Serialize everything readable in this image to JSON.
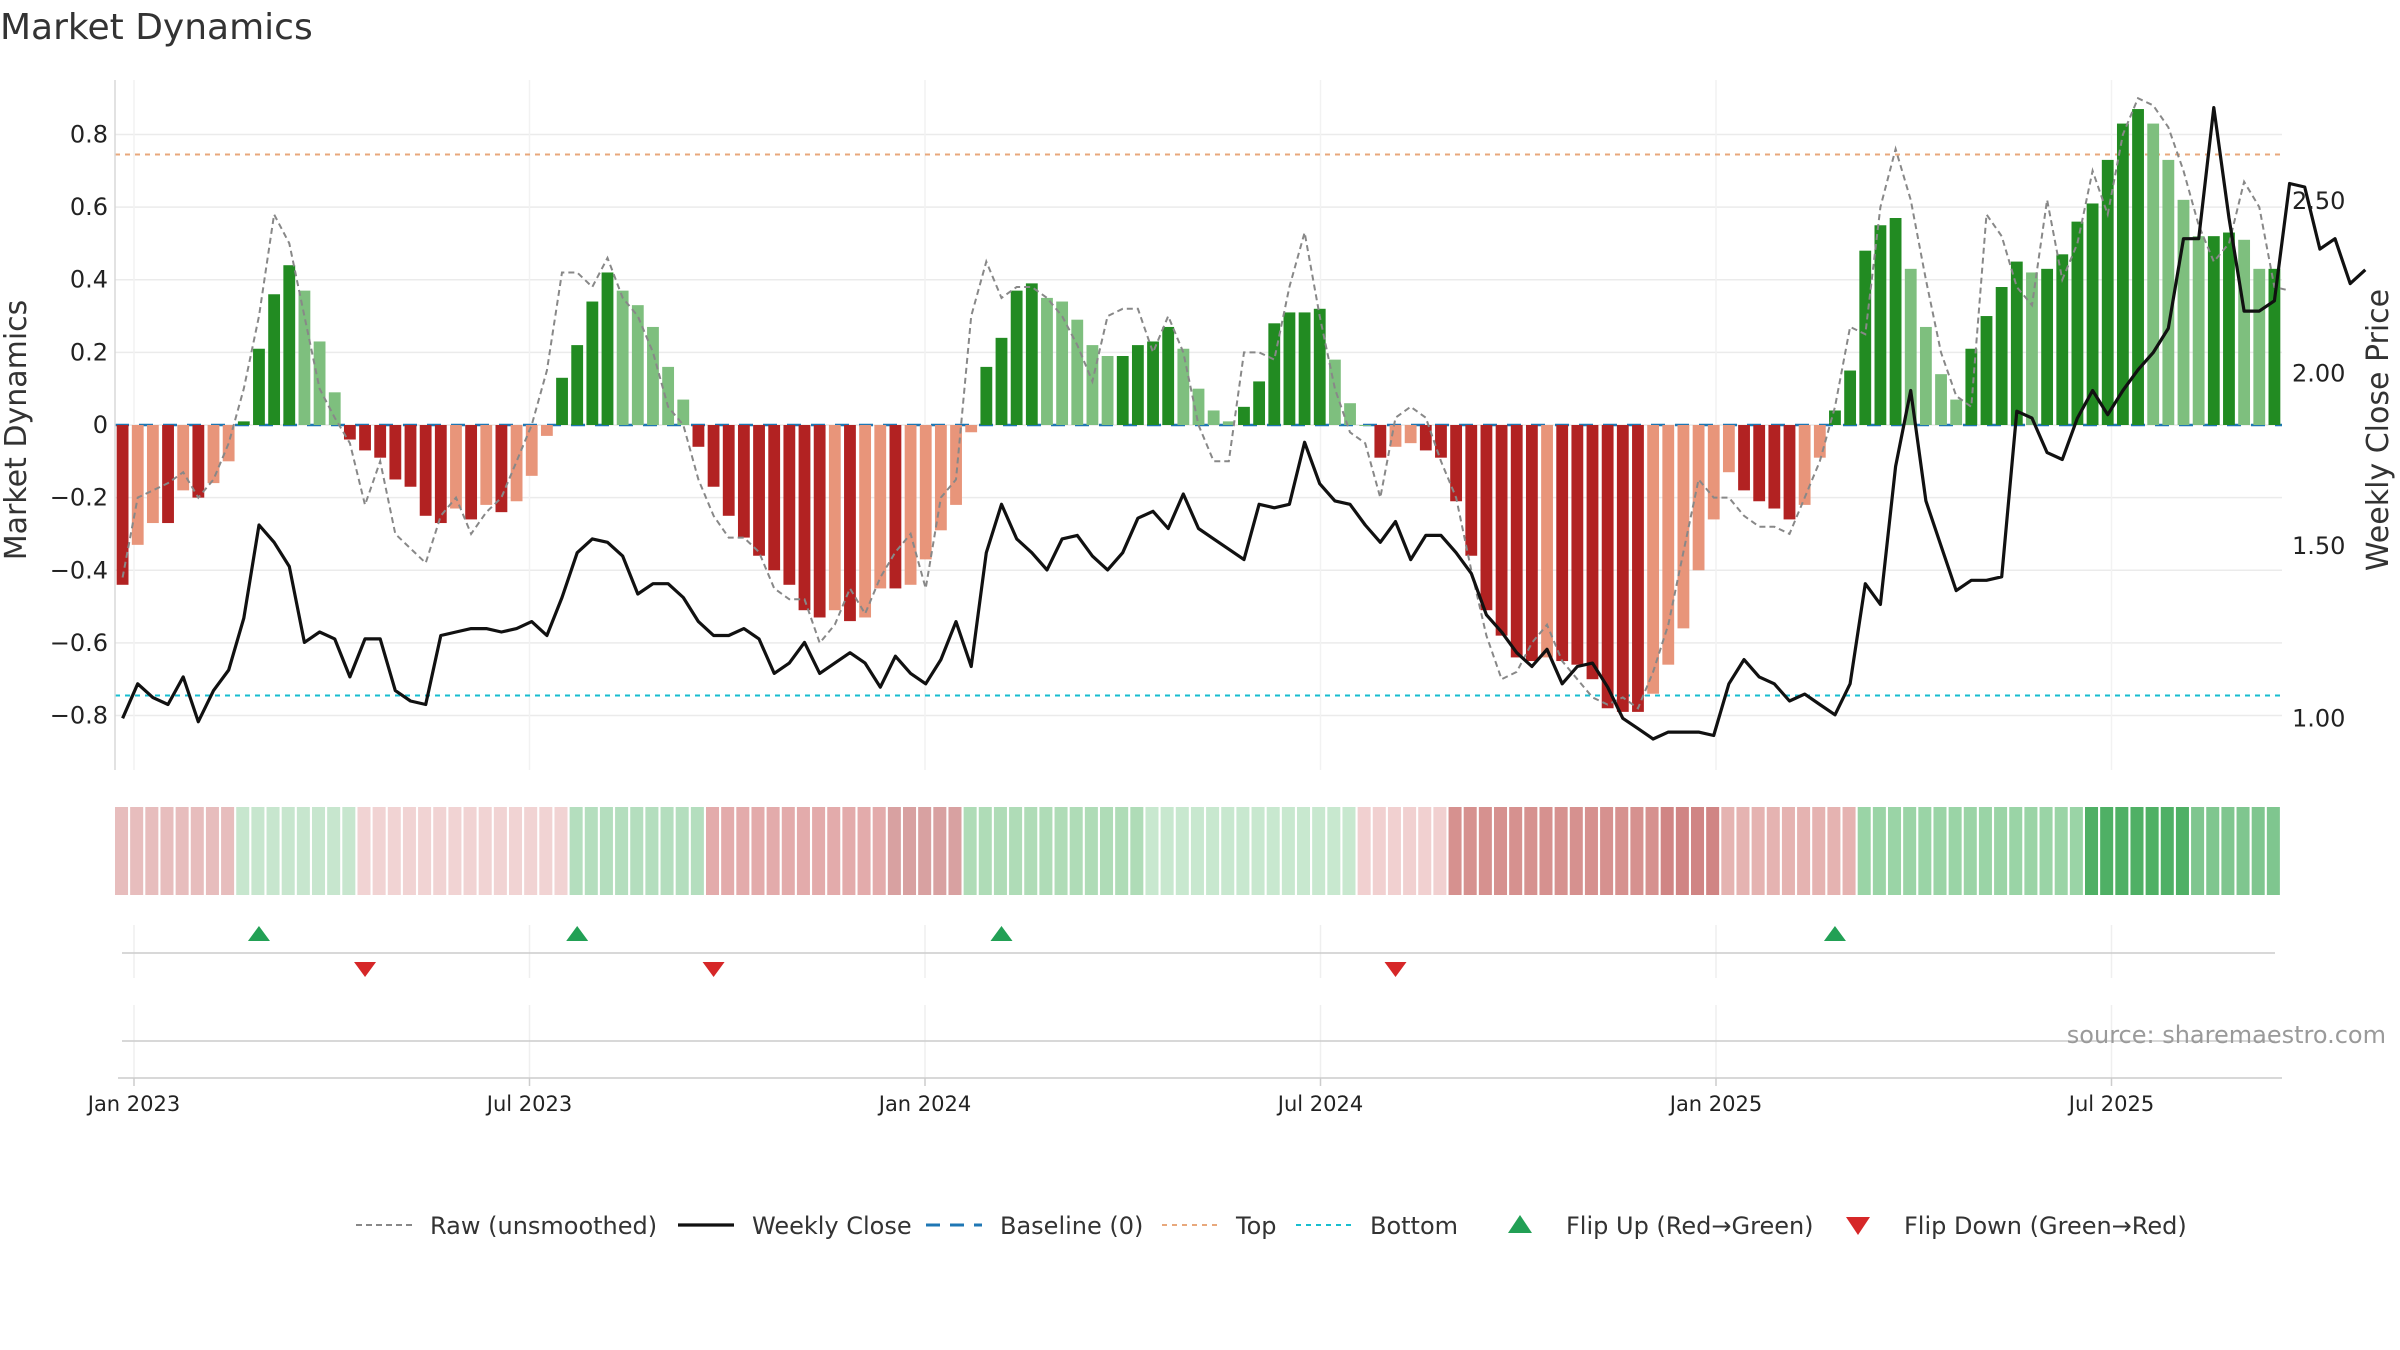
{
  "chart_data": {
    "type": "bar",
    "title": "Market Dynamics",
    "ylabel": "Market Dynamics",
    "y2label": "Weekly Close Price",
    "ylim": [
      -0.95,
      0.95
    ],
    "y2lim": [
      0.85,
      2.85
    ],
    "y_ticks": [
      0.8,
      0.6,
      0.4,
      0.2,
      0,
      -0.2,
      -0.4,
      -0.6,
      -0.8
    ],
    "y_tick_labels": [
      "0.8",
      "0.6",
      "0.4",
      "0.2",
      "0",
      "−0.2",
      "−0.4",
      "−0.6",
      "−0.8"
    ],
    "y2_ticks": [
      2.5,
      2.0,
      1.5,
      1.0
    ],
    "y2_tick_labels": [
      "2.50",
      "2.00",
      "1.50",
      "1.00"
    ],
    "x_ticks": [
      {
        "label": "Jan 2023",
        "week": 1
      },
      {
        "label": "Jul 2023",
        "week": 27
      },
      {
        "label": "Jan 2024",
        "week": 53
      },
      {
        "label": "Jul 2024",
        "week": 79
      },
      {
        "label": "Jan 2025",
        "week": 105
      },
      {
        "label": "Jul 2025",
        "week": 131
      }
    ],
    "top_level": 0.745,
    "bottom_level": -0.745,
    "baseline": 0,
    "histogram": [
      -0.44,
      -0.33,
      -0.27,
      -0.27,
      -0.18,
      -0.2,
      -0.16,
      -0.1,
      0.01,
      0.21,
      0.36,
      0.44,
      0.37,
      0.23,
      0.09,
      -0.04,
      -0.07,
      -0.09,
      -0.15,
      -0.17,
      -0.25,
      -0.27,
      -0.23,
      -0.26,
      -0.22,
      -0.24,
      -0.21,
      -0.14,
      -0.03,
      0.13,
      0.22,
      0.34,
      0.42,
      0.37,
      0.33,
      0.27,
      0.16,
      0.07,
      -0.06,
      -0.17,
      -0.25,
      -0.31,
      -0.36,
      -0.4,
      -0.44,
      -0.51,
      -0.53,
      -0.51,
      -0.54,
      -0.53,
      -0.45,
      -0.45,
      -0.44,
      -0.37,
      -0.29,
      -0.22,
      -0.02,
      0.16,
      0.24,
      0.37,
      0.39,
      0.35,
      0.34,
      0.29,
      0.22,
      0.19,
      0.19,
      0.22,
      0.23,
      0.27,
      0.21,
      0.1,
      0.04,
      0.01,
      0.05,
      0.12,
      0.28,
      0.31,
      0.31,
      0.32,
      0.18,
      0.06,
      0.0,
      -0.09,
      -0.06,
      -0.05,
      -0.07,
      -0.09,
      -0.21,
      -0.36,
      -0.51,
      -0.58,
      -0.64,
      -0.65,
      -0.64,
      -0.65,
      -0.66,
      -0.7,
      -0.78,
      -0.79,
      -0.79,
      -0.74,
      -0.66,
      -0.56,
      -0.4,
      -0.26,
      -0.13,
      -0.18,
      -0.21,
      -0.23,
      -0.26,
      -0.22,
      -0.09,
      0.04,
      0.15,
      0.48,
      0.55,
      0.57,
      0.43,
      0.27,
      0.14,
      0.07,
      0.21,
      0.3,
      0.38,
      0.45,
      0.42,
      0.43,
      0.47,
      0.56,
      0.61,
      0.73,
      0.83,
      0.87,
      0.83,
      0.73,
      0.62,
      0.52,
      0.52,
      0.53,
      0.51,
      0.43,
      0.43
    ],
    "raw": [
      -0.42,
      -0.2,
      -0.18,
      -0.16,
      -0.13,
      -0.2,
      -0.15,
      -0.05,
      0.1,
      0.3,
      0.58,
      0.5,
      0.3,
      0.1,
      0.02,
      -0.05,
      -0.22,
      -0.1,
      -0.3,
      -0.34,
      -0.38,
      -0.25,
      -0.2,
      -0.3,
      -0.24,
      -0.2,
      -0.1,
      0.0,
      0.15,
      0.42,
      0.42,
      0.38,
      0.46,
      0.35,
      0.3,
      0.2,
      0.05,
      0.0,
      -0.15,
      -0.25,
      -0.31,
      -0.31,
      -0.35,
      -0.45,
      -0.48,
      -0.48,
      -0.6,
      -0.55,
      -0.45,
      -0.52,
      -0.42,
      -0.35,
      -0.3,
      -0.45,
      -0.2,
      -0.15,
      0.3,
      0.45,
      0.35,
      0.38,
      0.38,
      0.35,
      0.3,
      0.22,
      0.12,
      0.3,
      0.32,
      0.32,
      0.2,
      0.3,
      0.2,
      0.0,
      -0.1,
      -0.1,
      0.2,
      0.2,
      0.18,
      0.38,
      0.53,
      0.3,
      0.1,
      -0.02,
      -0.05,
      -0.2,
      0.02,
      0.05,
      0.02,
      -0.1,
      -0.2,
      -0.4,
      -0.58,
      -0.7,
      -0.68,
      -0.6,
      -0.55,
      -0.65,
      -0.7,
      -0.75,
      -0.77,
      -0.75,
      -0.78,
      -0.68,
      -0.55,
      -0.35,
      -0.15,
      -0.2,
      -0.2,
      -0.25,
      -0.28,
      -0.28,
      -0.3,
      -0.2,
      -0.1,
      0.05,
      0.27,
      0.25,
      0.6,
      0.76,
      0.62,
      0.4,
      0.2,
      0.08,
      0.05,
      0.58,
      0.52,
      0.38,
      0.33,
      0.62,
      0.4,
      0.5,
      0.7,
      0.58,
      0.8,
      0.9,
      0.88,
      0.82,
      0.7,
      0.55,
      0.45,
      0.5,
      0.67,
      0.6,
      0.38,
      0.37
    ],
    "weekly_close": [
      1.0,
      1.1,
      1.06,
      1.04,
      1.12,
      0.99,
      1.08,
      1.14,
      1.29,
      1.56,
      1.51,
      1.44,
      1.22,
      1.25,
      1.23,
      1.12,
      1.23,
      1.23,
      1.08,
      1.05,
      1.04,
      1.24,
      1.25,
      1.26,
      1.26,
      1.25,
      1.26,
      1.28,
      1.24,
      1.35,
      1.48,
      1.52,
      1.51,
      1.47,
      1.36,
      1.39,
      1.39,
      1.35,
      1.28,
      1.24,
      1.24,
      1.26,
      1.23,
      1.13,
      1.16,
      1.22,
      1.13,
      1.16,
      1.19,
      1.16,
      1.09,
      1.18,
      1.13,
      1.1,
      1.17,
      1.28,
      1.15,
      1.48,
      1.62,
      1.52,
      1.48,
      1.43,
      1.52,
      1.53,
      1.47,
      1.43,
      1.48,
      1.58,
      1.6,
      1.55,
      1.65,
      1.55,
      1.52,
      1.49,
      1.46,
      1.62,
      1.61,
      1.62,
      1.8,
      1.68,
      1.63,
      1.62,
      1.56,
      1.51,
      1.57,
      1.46,
      1.53,
      1.53,
      1.48,
      1.42,
      1.3,
      1.25,
      1.19,
      1.15,
      1.2,
      1.1,
      1.15,
      1.16,
      1.09,
      1.0,
      0.97,
      0.94,
      0.96,
      0.96,
      0.96,
      0.95,
      1.1,
      1.17,
      1.12,
      1.1,
      1.05,
      1.07,
      1.04,
      1.01,
      1.1,
      1.39,
      1.33,
      1.73,
      1.95,
      1.63,
      1.5,
      1.37,
      1.4,
      1.4,
      1.41,
      1.89,
      1.87,
      1.77,
      1.75,
      1.87,
      1.95,
      1.88,
      1.95,
      2.01,
      2.06,
      2.13,
      2.39,
      2.39,
      2.77,
      2.45,
      2.18,
      2.18,
      2.21,
      2.55,
      2.54,
      2.36,
      2.39,
      2.26,
      2.3
    ],
    "strip": [
      {
        "color": "#E7BDBD",
        "weeks": 8
      },
      {
        "color": "#C7E6CE",
        "weeks": 8
      },
      {
        "color": "#F1D3D3",
        "weeks": 14
      },
      {
        "color": "#B4DEBE",
        "weeks": 9
      },
      {
        "color": "#E3ABAB",
        "weeks": 12
      },
      {
        "color": "#D8A1A1",
        "weeks": 5
      },
      {
        "color": "#AFDCB7",
        "weeks": 12
      },
      {
        "color": "#C8E8CF",
        "weeks": 14
      },
      {
        "color": "#F1D0D0",
        "weeks": 6
      },
      {
        "color": "#D6918F",
        "weeks": 14
      },
      {
        "color": "#D08584",
        "weeks": 4
      },
      {
        "color": "#E5B3B1",
        "weeks": 9
      },
      {
        "color": "#9AD4A6",
        "weeks": 15
      },
      {
        "color": "#4FB065",
        "weeks": 7
      },
      {
        "color": "#7FC68F",
        "weeks": 7
      }
    ],
    "flip_up_weeks": [
      9,
      30,
      58,
      113
    ],
    "flip_down_weeks": [
      16,
      39,
      84
    ],
    "legend": [
      {
        "kind": "raw",
        "label": "Raw (unsmoothed)"
      },
      {
        "kind": "close",
        "label": "Weekly Close"
      },
      {
        "kind": "baseline",
        "label": "Baseline (0)"
      },
      {
        "kind": "top",
        "label": "Top"
      },
      {
        "kind": "bottom",
        "label": "Bottom"
      },
      {
        "kind": "flipup",
        "label": "Flip Up (Red→Green)"
      },
      {
        "kind": "flipdown",
        "label": "Flip Down (Green→Red)"
      }
    ],
    "source": "source: sharemaestro.com"
  },
  "colors": {
    "strong_green": "#228B22",
    "light_green": "#7EBF7E",
    "strong_red": "#B22222",
    "light_red": "#E8957A",
    "close_line": "#111111",
    "raw_line": "#888888",
    "baseline": "#1F77B4",
    "top_line": "#E8A87C",
    "bottom_line": "#17BECF",
    "flip_up": "#22A055",
    "flip_down": "#D62728",
    "grid": "#EBEBEB"
  }
}
